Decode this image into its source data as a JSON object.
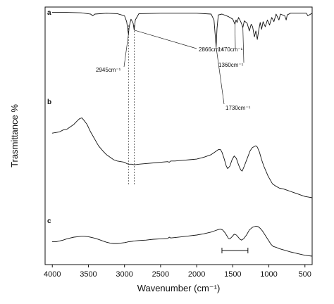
{
  "chart_data": {
    "type": "line",
    "xlabel": "Wavenumber (cm⁻¹)",
    "ylabel": "Trasmittance %",
    "xlim": [
      4100,
      400
    ],
    "x_ticks": [
      4000,
      3500,
      3000,
      2500,
      2000,
      1500,
      1000,
      500
    ],
    "tick_labels": [
      "4000",
      "3500",
      "3000",
      "2500",
      "2000",
      "1500",
      "1000",
      "500"
    ],
    "series": [
      {
        "name": "a",
        "points": [
          [
            4000,
            97
          ],
          [
            3800,
            97
          ],
          [
            3600,
            96.5
          ],
          [
            3470,
            95
          ],
          [
            3440,
            93
          ],
          [
            3410,
            95
          ],
          [
            3250,
            96
          ],
          [
            3100,
            95.5
          ],
          [
            3000,
            93
          ],
          [
            2970,
            86
          ],
          [
            2945,
            71
          ],
          [
            2935,
            80
          ],
          [
            2910,
            89
          ],
          [
            2880,
            84
          ],
          [
            2866,
            76
          ],
          [
            2850,
            88
          ],
          [
            2800,
            95.5
          ],
          [
            2500,
            96
          ],
          [
            2000,
            96
          ],
          [
            1800,
            95
          ],
          [
            1760,
            88
          ],
          [
            1745,
            72
          ],
          [
            1730,
            56
          ],
          [
            1718,
            78
          ],
          [
            1700,
            94
          ],
          [
            1650,
            95
          ],
          [
            1560,
            92
          ],
          [
            1500,
            89
          ],
          [
            1470,
            83
          ],
          [
            1455,
            88
          ],
          [
            1440,
            85
          ],
          [
            1420,
            91
          ],
          [
            1390,
            86
          ],
          [
            1375,
            83
          ],
          [
            1360,
            79
          ],
          [
            1340,
            87
          ],
          [
            1300,
            84
          ],
          [
            1270,
            75
          ],
          [
            1245,
            83
          ],
          [
            1225,
            80
          ],
          [
            1200,
            68
          ],
          [
            1180,
            75
          ],
          [
            1160,
            65
          ],
          [
            1140,
            76
          ],
          [
            1120,
            85
          ],
          [
            1100,
            77
          ],
          [
            1080,
            86
          ],
          [
            1050,
            80
          ],
          [
            1020,
            88
          ],
          [
            990,
            82
          ],
          [
            960,
            91
          ],
          [
            930,
            86
          ],
          [
            900,
            95
          ],
          [
            860,
            88
          ],
          [
            840,
            95
          ],
          [
            780,
            93
          ],
          [
            760,
            88
          ],
          [
            745,
            94
          ],
          [
            700,
            96
          ],
          [
            600,
            96
          ],
          [
            480,
            96
          ],
          [
            460,
            93
          ],
          [
            400,
            96
          ]
        ]
      },
      {
        "name": "b",
        "points": [
          [
            4000,
            56
          ],
          [
            3950,
            56.5
          ],
          [
            3900,
            57
          ],
          [
            3850,
            58.5
          ],
          [
            3800,
            59
          ],
          [
            3750,
            61
          ],
          [
            3700,
            63
          ],
          [
            3650,
            66
          ],
          [
            3620,
            67.5
          ],
          [
            3590,
            68
          ],
          [
            3560,
            66
          ],
          [
            3520,
            63
          ],
          [
            3470,
            57
          ],
          [
            3420,
            52
          ],
          [
            3360,
            46
          ],
          [
            3300,
            42
          ],
          [
            3250,
            39
          ],
          [
            3200,
            37
          ],
          [
            3150,
            35
          ],
          [
            3100,
            34
          ],
          [
            3050,
            33.5
          ],
          [
            3000,
            33
          ],
          [
            2970,
            32
          ],
          [
            2945,
            31.5
          ],
          [
            2900,
            31.5
          ],
          [
            2866,
            31
          ],
          [
            2800,
            31.5
          ],
          [
            2700,
            32
          ],
          [
            2600,
            32.5
          ],
          [
            2500,
            33
          ],
          [
            2400,
            33.5
          ],
          [
            2380,
            33
          ],
          [
            2360,
            34
          ],
          [
            2300,
            34
          ],
          [
            2200,
            34.5
          ],
          [
            2100,
            35
          ],
          [
            2000,
            35.5
          ],
          [
            1900,
            37
          ],
          [
            1800,
            39
          ],
          [
            1750,
            41
          ],
          [
            1700,
            43
          ],
          [
            1670,
            43
          ],
          [
            1650,
            41
          ],
          [
            1620,
            36
          ],
          [
            1590,
            30
          ],
          [
            1570,
            28
          ],
          [
            1540,
            30
          ],
          [
            1510,
            35
          ],
          [
            1480,
            38
          ],
          [
            1450,
            36
          ],
          [
            1420,
            31
          ],
          [
            1390,
            27
          ],
          [
            1370,
            26
          ],
          [
            1340,
            30
          ],
          [
            1300,
            36
          ],
          [
            1260,
            42
          ],
          [
            1230,
            44.5
          ],
          [
            1200,
            45.5
          ],
          [
            1180,
            46
          ],
          [
            1160,
            45
          ],
          [
            1130,
            41
          ],
          [
            1100,
            35
          ],
          [
            1070,
            30
          ],
          [
            1040,
            26
          ],
          [
            1010,
            22
          ],
          [
            980,
            19
          ],
          [
            950,
            16
          ],
          [
            900,
            14
          ],
          [
            850,
            12.5
          ],
          [
            800,
            12
          ],
          [
            750,
            11
          ],
          [
            700,
            10
          ],
          [
            650,
            9
          ],
          [
            600,
            8
          ],
          [
            550,
            7
          ],
          [
            500,
            6
          ],
          [
            450,
            5.5
          ],
          [
            400,
            5
          ]
        ]
      },
      {
        "name": "c",
        "points": [
          [
            4000,
            22
          ],
          [
            3950,
            22
          ],
          [
            3900,
            23
          ],
          [
            3850,
            24
          ],
          [
            3800,
            25.5
          ],
          [
            3750,
            26.5
          ],
          [
            3700,
            27.5
          ],
          [
            3650,
            28
          ],
          [
            3600,
            28.5
          ],
          [
            3560,
            28.5
          ],
          [
            3500,
            28
          ],
          [
            3450,
            27
          ],
          [
            3400,
            26
          ],
          [
            3350,
            24.5
          ],
          [
            3300,
            23
          ],
          [
            3250,
            21.5
          ],
          [
            3200,
            20.5
          ],
          [
            3150,
            20
          ],
          [
            3100,
            20
          ],
          [
            3050,
            20.5
          ],
          [
            3000,
            21
          ],
          [
            2970,
            21.5
          ],
          [
            2945,
            22
          ],
          [
            2900,
            22.5
          ],
          [
            2866,
            23
          ],
          [
            2800,
            23.5
          ],
          [
            2700,
            24
          ],
          [
            2600,
            25
          ],
          [
            2500,
            25.5
          ],
          [
            2400,
            26
          ],
          [
            2380,
            27.5
          ],
          [
            2360,
            26.5
          ],
          [
            2300,
            27
          ],
          [
            2200,
            28
          ],
          [
            2100,
            29
          ],
          [
            2000,
            30
          ],
          [
            1900,
            31.5
          ],
          [
            1800,
            33.5
          ],
          [
            1750,
            35
          ],
          [
            1700,
            36.5
          ],
          [
            1670,
            37
          ],
          [
            1640,
            36
          ],
          [
            1610,
            33
          ],
          [
            1580,
            29
          ],
          [
            1560,
            26
          ],
          [
            1540,
            25.5
          ],
          [
            1510,
            28
          ],
          [
            1480,
            31
          ],
          [
            1450,
            30
          ],
          [
            1420,
            27
          ],
          [
            1400,
            25
          ],
          [
            1380,
            24
          ],
          [
            1350,
            25.5
          ],
          [
            1310,
            30
          ],
          [
            1270,
            36
          ],
          [
            1230,
            39
          ],
          [
            1200,
            40
          ],
          [
            1180,
            40.5
          ],
          [
            1150,
            40
          ],
          [
            1120,
            38
          ],
          [
            1090,
            35
          ],
          [
            1060,
            31
          ],
          [
            1030,
            27
          ],
          [
            1000,
            23
          ],
          [
            970,
            19
          ],
          [
            940,
            16.5
          ],
          [
            900,
            15.5
          ],
          [
            860,
            14
          ],
          [
            820,
            13
          ],
          [
            780,
            12
          ],
          [
            740,
            11
          ],
          [
            700,
            10
          ],
          [
            650,
            9
          ],
          [
            600,
            8
          ],
          [
            550,
            7
          ],
          [
            500,
            6
          ],
          [
            450,
            5.5
          ],
          [
            400,
            5
          ]
        ]
      }
    ],
    "annotations": [
      {
        "text": "2945cm⁻¹",
        "x": 2945,
        "y": 71
      },
      {
        "text": "2866cm⁻¹",
        "x": 2866,
        "y": 76
      },
      {
        "text": "1470cm⁻¹",
        "x": 1470,
        "y": 83
      },
      {
        "text": "1360cm⁻¹",
        "x": 1360,
        "y": 79
      },
      {
        "text": "1730cm⁻¹",
        "x": 1730,
        "y": 56
      }
    ],
    "dotted_guides": [
      2945,
      2866
    ],
    "scale_bar": {
      "from": 1650,
      "to": 1290,
      "y": 10
    },
    "grid": false,
    "legend": "none"
  }
}
